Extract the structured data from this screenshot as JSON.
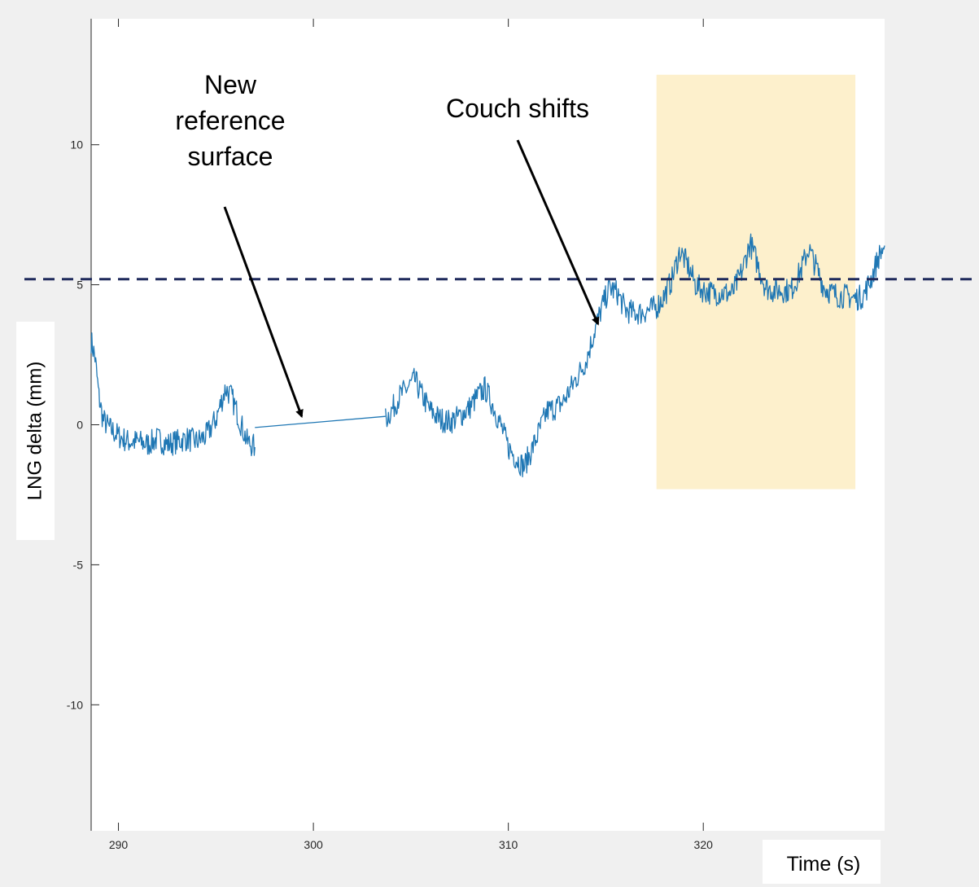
{
  "chart_data": {
    "type": "line",
    "title": "",
    "xlabel": "Time (s)",
    "ylabel": "LNG delta (mm)",
    "xlim": [
      288.6,
      329.3
    ],
    "ylim": [
      -14.5,
      14.5
    ],
    "xticks": [
      290,
      300,
      310,
      320
    ],
    "yticks": [
      -10,
      -5,
      0,
      5,
      10
    ],
    "grid": false,
    "threshold_line": {
      "y": 5.2,
      "style": "dashed",
      "color": "#1f2a5c"
    },
    "highlight_region": {
      "x": [
        317.6,
        327.8
      ],
      "y": [
        -2.3,
        12.5
      ],
      "color": "#fdf0cc"
    },
    "annotations": [
      {
        "text": "New reference surface",
        "lines": [
          "New",
          "reference",
          "surface"
        ],
        "arrow_to": [
          299.4,
          0.3
        ]
      },
      {
        "text": "Couch shifts",
        "lines": [
          "Couch shifts"
        ],
        "arrow_to": [
          314.6,
          3.6
        ]
      }
    ],
    "series": [
      {
        "color": "#1f77b4",
        "segments": [
          {
            "x": [
              288.6,
              288.8,
              289.0,
              289.2,
              289.5,
              290.0,
              290.5,
              291.0,
              291.5,
              292.0,
              292.5,
              293.0,
              293.5,
              294.0,
              294.5,
              295.0,
              295.5,
              295.8,
              296.2,
              296.6,
              297.0
            ],
            "y": [
              3.0,
              2.4,
              1.0,
              0.2,
              -0.1,
              -0.4,
              -0.6,
              -0.6,
              -0.7,
              -0.5,
              -0.7,
              -0.6,
              -0.5,
              -0.6,
              -0.4,
              0.2,
              1.3,
              1.0,
              0.2,
              -0.6,
              -0.8
            ]
          },
          {
            "x": [
              297.0,
              303.7
            ],
            "y": [
              -0.1,
              0.3
            ]
          },
          {
            "x": [
              303.7,
              304.0,
              304.4,
              304.8,
              305.2,
              305.6,
              306.0,
              306.5,
              307.0,
              307.5,
              308.0,
              308.4,
              308.8,
              309.2,
              309.6,
              310.0,
              310.4,
              310.8,
              311.2,
              311.6,
              312.0,
              312.4,
              312.8,
              313.2,
              313.6,
              314.0,
              314.4,
              314.8,
              315.2,
              315.6,
              316.0,
              316.4,
              316.8,
              317.2,
              317.6,
              318.0,
              318.4,
              318.8,
              319.2,
              319.6,
              320.0,
              320.5,
              321.0,
              321.5,
              322.0,
              322.4,
              322.8,
              323.2,
              323.6,
              324.0,
              324.5,
              325.0,
              325.4,
              325.8,
              326.2,
              326.6,
              327.0,
              327.4,
              327.8,
              328.2,
              328.6,
              329.0,
              329.3
            ],
            "y": [
              0.2,
              0.5,
              1.0,
              1.3,
              1.6,
              1.0,
              0.5,
              0.2,
              0.1,
              0.3,
              0.6,
              1.0,
              1.3,
              0.7,
              0.0,
              -0.8,
              -1.2,
              -1.5,
              -0.9,
              -0.2,
              0.5,
              0.6,
              0.8,
              1.3,
              1.8,
              2.3,
              3.3,
              4.2,
              4.9,
              4.7,
              4.1,
              4.0,
              4.0,
              4.1,
              4.2,
              4.6,
              5.2,
              6.2,
              5.7,
              5.0,
              4.8,
              4.7,
              4.7,
              4.7,
              5.5,
              6.5,
              5.7,
              4.9,
              4.8,
              4.8,
              4.8,
              5.5,
              6.3,
              5.6,
              4.9,
              4.7,
              4.6,
              4.6,
              4.5,
              4.6,
              5.2,
              6.0,
              6.4
            ]
          }
        ]
      }
    ]
  }
}
